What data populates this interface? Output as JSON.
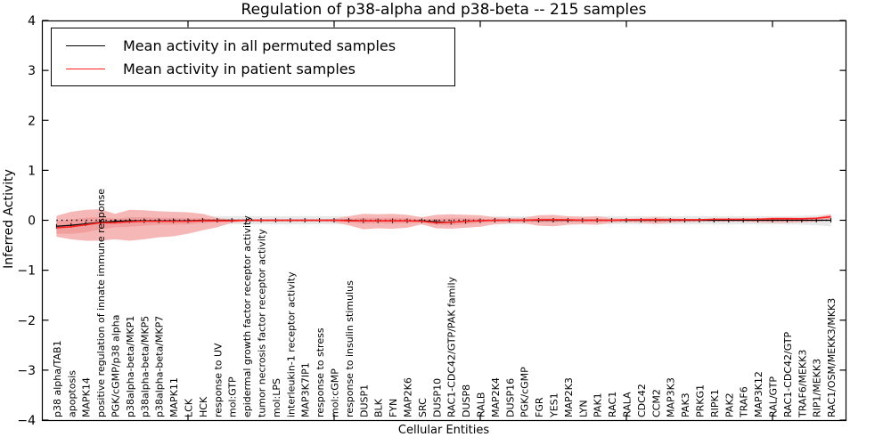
{
  "chart_data": {
    "type": "line",
    "title": "Regulation of p38-alpha and p38-beta -- 215 samples",
    "xlabel": "Cellular Entities",
    "ylabel": "Inferred Activity",
    "ylim": [
      -4,
      4
    ],
    "yticks": [
      4,
      3,
      2,
      1,
      0,
      -1,
      -2,
      -3,
      -4
    ],
    "xticks_major": [
      10,
      20,
      30,
      40,
      50
    ],
    "grid": false,
    "legend_position": "upper left",
    "zero_line": {
      "value": 0,
      "style": "dotted",
      "color": "#000000"
    },
    "categories": [
      "p38 alpha/TAB1",
      "apoptosis",
      "MAPK14",
      "positive regulation of innate immune response",
      "PGK/cGMP/p38 alpha",
      "p38alpha-beta/MKP1",
      "p38alpha-beta/MKP5",
      "p38alpha-beta/MKP7",
      "MAPK11",
      "LCK",
      "HCK",
      "response to UV",
      "mol:GTP",
      "epidermal growth factor receptor activity",
      "tumor necrosis factor receptor activity",
      "mol:LPS",
      "interleukin-1 receptor activity",
      "MAP3K7IP1",
      "response to stress",
      "mol:cGMP",
      "response to insulin stimulus",
      "DUSP1",
      "BLK",
      "FYN",
      "MAP2K6",
      "SRC",
      "DUSP10",
      "RAC1-CDC42/GTP/PAK family",
      "DUSP8",
      "RALB",
      "MAP2K4",
      "DUSP16",
      "PGK/cGMP",
      "FGR",
      "YES1",
      "MAP2K3",
      "LYN",
      "PAK1",
      "RAC1",
      "RALA",
      "CDC42",
      "CCM2",
      "MAP3K3",
      "PAK3",
      "PRKG1",
      "RIPK1",
      "PAK2",
      "TRAF6",
      "MAP3K12",
      "RAL/GTP",
      "RAC1-CDC42/GTP",
      "TRAF6/MEKK3",
      "RIP1/MEKK3",
      "RAC1/OSM/MEKK3/MKK3"
    ],
    "legend": [
      {
        "label": "Mean activity in all permuted samples",
        "color": "#000000"
      },
      {
        "label": "Mean activity in patient samples",
        "color": "#ff2222"
      }
    ],
    "series": [
      {
        "name": "permuted_mean",
        "color": "#000000",
        "values": [
          -0.12,
          -0.1,
          -0.07,
          -0.04,
          -0.02,
          -0.01,
          -0.01,
          -0.01,
          -0.01,
          -0.01,
          0,
          0,
          0,
          0,
          0,
          0,
          0,
          0,
          0,
          0,
          0,
          -0.01,
          -0.01,
          -0.01,
          -0.01,
          -0.01,
          -0.03,
          -0.04,
          -0.02,
          -0.01,
          0,
          0,
          0,
          0,
          0,
          0,
          0,
          0,
          0,
          0,
          0,
          0,
          0,
          0,
          0,
          0,
          0,
          0,
          0,
          0,
          0,
          0,
          0,
          0
        ]
      },
      {
        "name": "patient_mean",
        "color": "#ff2222",
        "values": [
          -0.15,
          -0.13,
          -0.09,
          -0.05,
          -0.05,
          -0.03,
          -0.02,
          -0.02,
          -0.02,
          -0.02,
          -0.01,
          -0.01,
          -0.01,
          0,
          0,
          0,
          0,
          0,
          0,
          0,
          -0.01,
          -0.01,
          -0.01,
          -0.01,
          -0.01,
          -0.02,
          -0.05,
          -0.04,
          -0.02,
          -0.01,
          0,
          0,
          0,
          0.01,
          0.01,
          0.01,
          0,
          0,
          0,
          0.01,
          0.01,
          0.01,
          0.01,
          0.01,
          0.01,
          0.02,
          0.02,
          0.02,
          0.02,
          0.03,
          0.03,
          0.03,
          0.04,
          0.07
        ]
      }
    ],
    "bands": [
      {
        "name": "permuted_range",
        "color": "#e8e8e8",
        "upper": [
          -0.02,
          0.0,
          0.02,
          0.04,
          0.06,
          0.07,
          0.07,
          0.07,
          0.07,
          0.07,
          0.08,
          0.08,
          0.08,
          0.08,
          0.08,
          0.08,
          0.08,
          0.08,
          0.08,
          0.08,
          0.08,
          0.07,
          0.07,
          0.07,
          0.07,
          0.07,
          0.05,
          0.04,
          0.06,
          0.07,
          0.08,
          0.08,
          0.08,
          0.08,
          0.08,
          0.08,
          0.08,
          0.08,
          0.08,
          0.08,
          0.08,
          0.08,
          0.08,
          0.08,
          0.08,
          0.08,
          0.08,
          0.08,
          0.08,
          0.08,
          0.08,
          0.09,
          0.1,
          0.12
        ],
        "lower": [
          -0.22,
          -0.2,
          -0.16,
          -0.12,
          -0.1,
          -0.09,
          -0.09,
          -0.09,
          -0.09,
          -0.09,
          -0.08,
          -0.08,
          -0.08,
          -0.08,
          -0.08,
          -0.08,
          -0.08,
          -0.08,
          -0.08,
          -0.08,
          -0.08,
          -0.09,
          -0.09,
          -0.09,
          -0.09,
          -0.09,
          -0.11,
          -0.12,
          -0.1,
          -0.09,
          -0.08,
          -0.08,
          -0.08,
          -0.08,
          -0.08,
          -0.08,
          -0.08,
          -0.08,
          -0.08,
          -0.08,
          -0.08,
          -0.08,
          -0.08,
          -0.08,
          -0.08,
          -0.08,
          -0.08,
          -0.08,
          -0.08,
          -0.08,
          -0.08,
          -0.09,
          -0.1,
          -0.12
        ]
      },
      {
        "name": "patient_outer_band",
        "color": "#f6b7b7",
        "upper": [
          0.09,
          0.17,
          0.21,
          0.22,
          0.13,
          0.21,
          0.2,
          0.18,
          0.17,
          0.16,
          0.13,
          0.05,
          0.02,
          0.02,
          0.02,
          0.02,
          0.02,
          0.02,
          0.02,
          0.03,
          0.08,
          0.13,
          0.12,
          0.13,
          0.11,
          0.06,
          0.11,
          0.12,
          0.11,
          0.1,
          0.06,
          0.05,
          0.05,
          0.1,
          0.11,
          0.08,
          0.07,
          0.08,
          0.04,
          0.03,
          0.04,
          0.06,
          0.04,
          0.03,
          0.03,
          0.03,
          0.03,
          0.03,
          0.04,
          0.06,
          0.06,
          0.05,
          0.06,
          0.12
        ],
        "lower": [
          -0.33,
          -0.38,
          -0.41,
          -0.41,
          -0.38,
          -0.41,
          -0.38,
          -0.34,
          -0.32,
          -0.27,
          -0.2,
          -0.14,
          -0.05,
          -0.03,
          -0.03,
          -0.03,
          -0.03,
          -0.03,
          -0.03,
          -0.04,
          -0.1,
          -0.18,
          -0.16,
          -0.17,
          -0.15,
          -0.08,
          -0.16,
          -0.17,
          -0.15,
          -0.13,
          -0.08,
          -0.06,
          -0.06,
          -0.11,
          -0.12,
          -0.09,
          -0.08,
          -0.09,
          -0.05,
          -0.04,
          -0.05,
          -0.07,
          -0.05,
          -0.04,
          -0.03,
          -0.03,
          -0.03,
          -0.03,
          -0.04,
          -0.05,
          -0.05,
          -0.04,
          -0.03,
          0.02
        ]
      },
      {
        "name": "patient_inner_band",
        "color": "#f09e9e",
        "upper": [
          -0.02,
          0.02,
          0.05,
          0.06,
          0.03,
          0.06,
          0.06,
          0.05,
          0.05,
          0.04,
          0.04,
          0.02,
          0.01,
          0.01,
          0.01,
          0.01,
          0.01,
          0.01,
          0.01,
          0.01,
          0.03,
          0.05,
          0.04,
          0.05,
          0.04,
          0.02,
          0.03,
          0.04,
          0.04,
          0.03,
          0.02,
          0.02,
          0.02,
          0.04,
          0.04,
          0.03,
          0.03,
          0.03,
          0.02,
          0.02,
          0.02,
          0.03,
          0.02,
          0.02,
          0.02,
          0.02,
          0.02,
          0.02,
          0.02,
          0.03,
          0.03,
          0.03,
          0.04,
          0.09
        ],
        "lower": [
          -0.27,
          -0.27,
          -0.24,
          -0.18,
          -0.14,
          -0.13,
          -0.11,
          -0.09,
          -0.09,
          -0.08,
          -0.06,
          -0.04,
          -0.03,
          -0.01,
          -0.01,
          -0.01,
          -0.01,
          -0.01,
          -0.01,
          -0.01,
          -0.04,
          -0.07,
          -0.06,
          -0.07,
          -0.06,
          -0.04,
          -0.09,
          -0.1,
          -0.08,
          -0.05,
          -0.03,
          -0.02,
          -0.02,
          -0.04,
          -0.04,
          -0.03,
          -0.03,
          -0.03,
          -0.02,
          -0.01,
          -0.02,
          -0.03,
          -0.02,
          -0.01,
          -0.01,
          -0.01,
          -0.01,
          -0.01,
          -0.01,
          0,
          0,
          0.01,
          0.02,
          0.04
        ]
      }
    ]
  }
}
